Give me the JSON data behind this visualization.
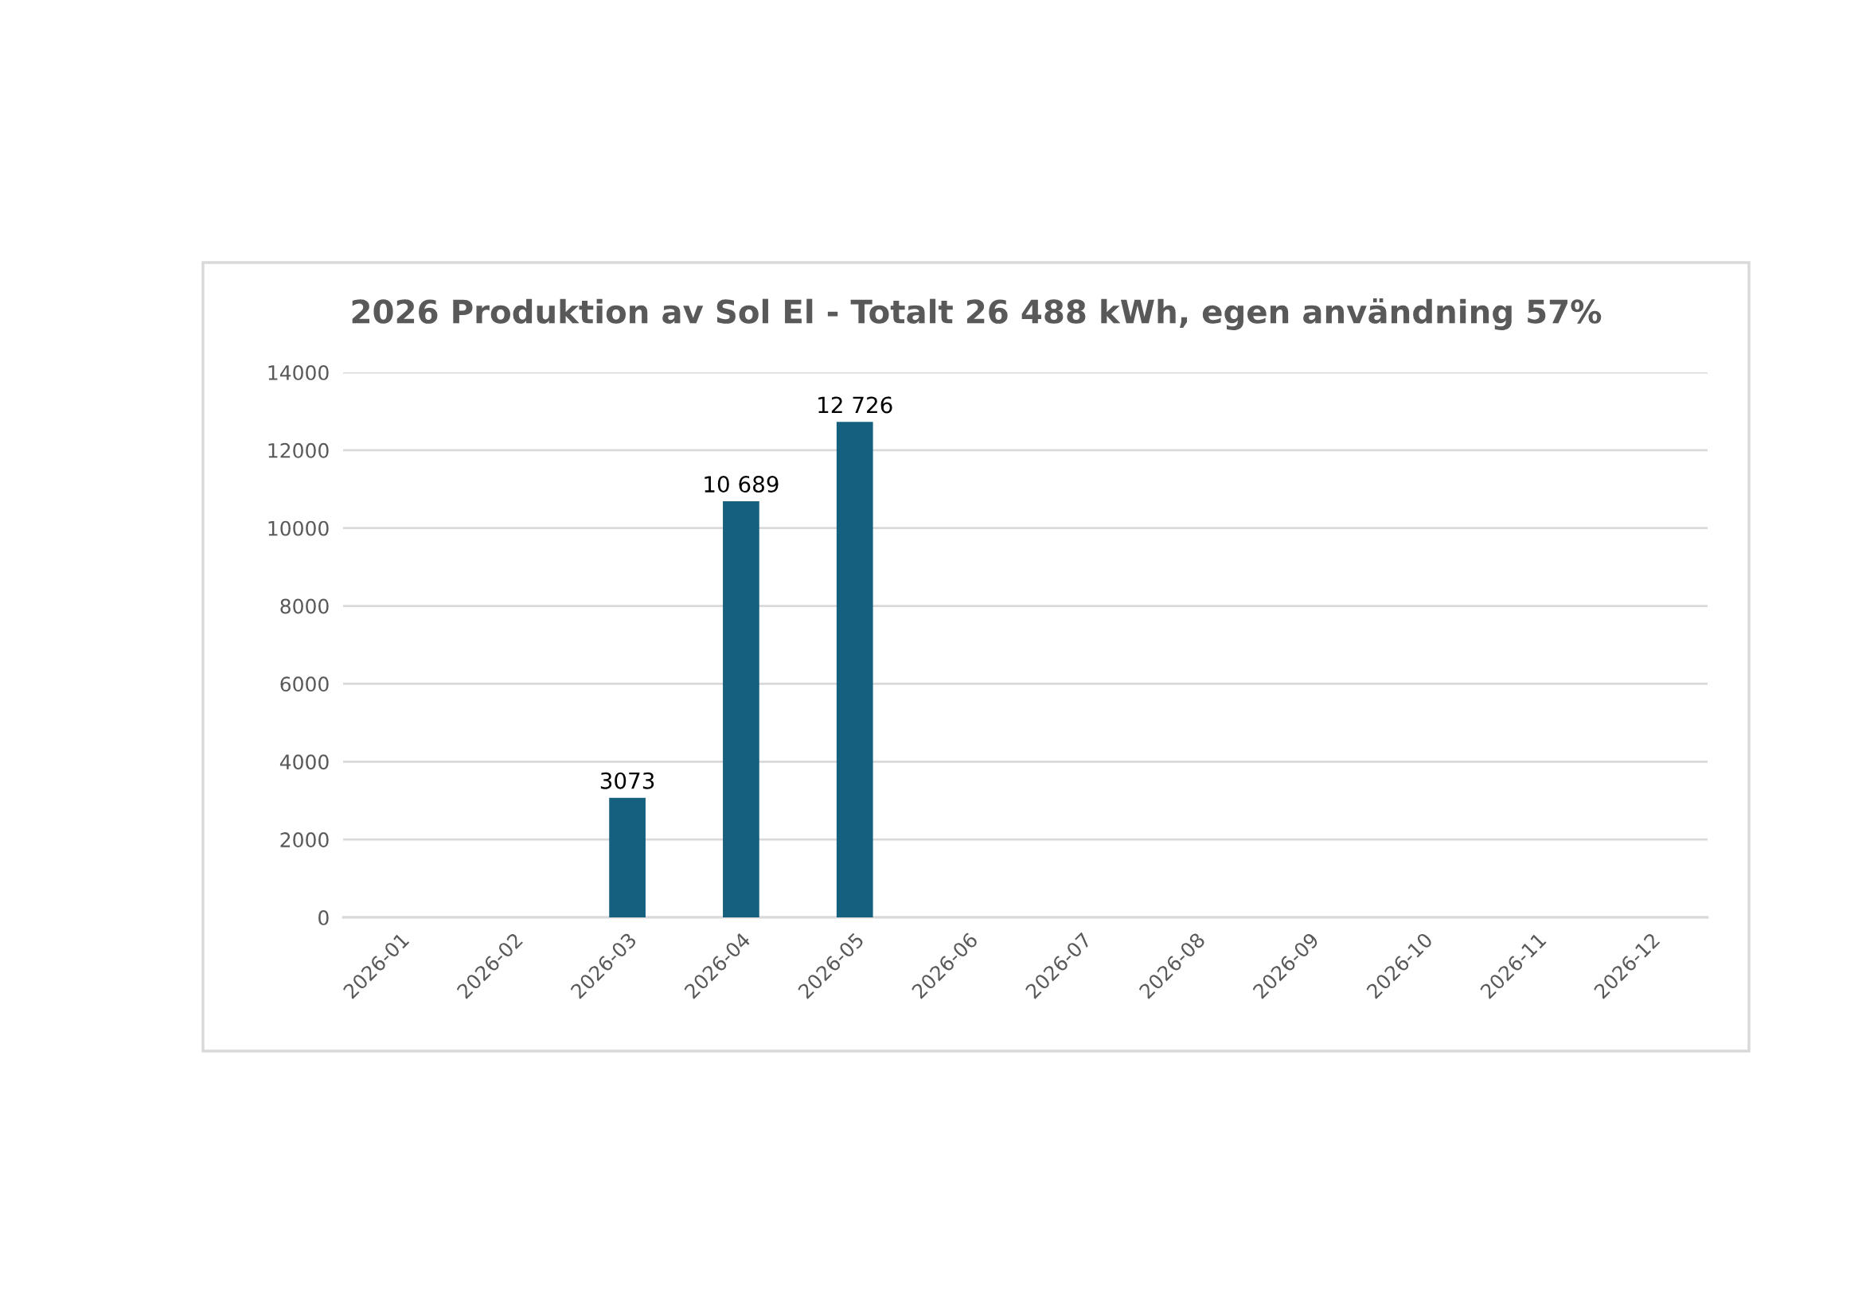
{
  "chart_data": {
    "type": "bar",
    "title": "2026 Produktion av Sol El - Totalt 26 488 kWh, egen användning 57%",
    "categories": [
      "2026-01",
      "2026-02",
      "2026-03",
      "2026-04",
      "2026-05",
      "2026-06",
      "2026-07",
      "2026-08",
      "2026-09",
      "2026-10",
      "2026-11",
      "2026-12"
    ],
    "values": [
      null,
      null,
      3073,
      10689,
      12726,
      null,
      null,
      null,
      null,
      null,
      null,
      null
    ],
    "value_labels": [
      null,
      null,
      "3073",
      "10 689",
      "12 726",
      null,
      null,
      null,
      null,
      null,
      null,
      null
    ],
    "color": "#155f7f",
    "ylim": [
      0,
      14000
    ],
    "yticks": [
      0,
      2000,
      4000,
      6000,
      8000,
      10000,
      12000,
      14000
    ],
    "grid": "y"
  }
}
